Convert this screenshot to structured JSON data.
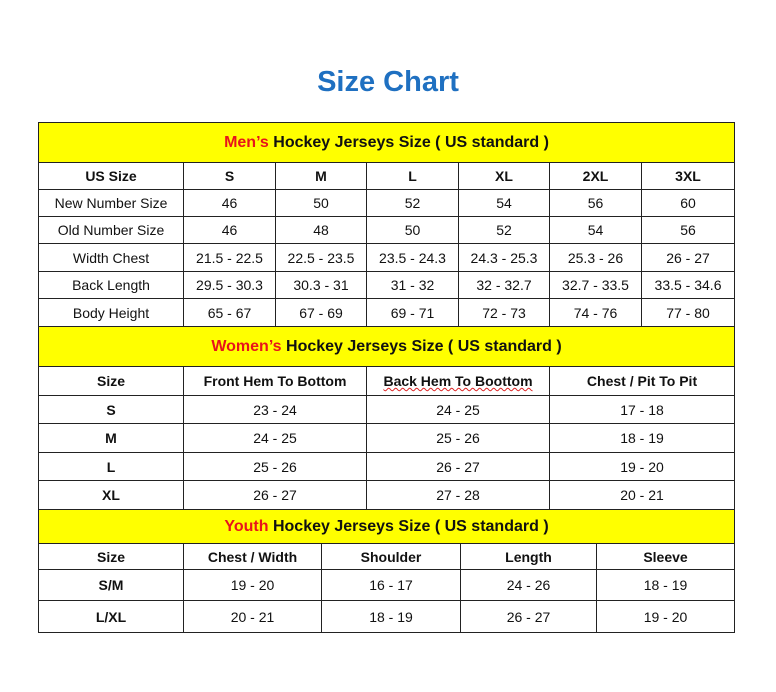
{
  "title": "Size Chart",
  "colors": {
    "title": "#1f70c1",
    "header_bg": "#ffff00",
    "accent_red": "#e8141b"
  },
  "mens": {
    "header_highlight": "Men’s",
    "header_rest": " Hockey Jerseys Size ( US standard )",
    "columns": [
      "US Size",
      "S",
      "M",
      "L",
      "XL",
      "2XL",
      "3XL"
    ],
    "rows": [
      [
        "New Number Size",
        "46",
        "50",
        "52",
        "54",
        "56",
        "60"
      ],
      [
        "Old Number Size",
        "46",
        "48",
        "50",
        "52",
        "54",
        "56"
      ],
      [
        "Width Chest",
        "21.5 - 22.5",
        "22.5 - 23.5",
        "23.5 - 24.3",
        "24.3 - 25.3",
        "25.3 - 26",
        "26 - 27"
      ],
      [
        "Back Length",
        "29.5 - 30.3",
        "30.3 - 31",
        "31 - 32",
        "32 - 32.7",
        "32.7 - 33.5",
        "33.5 - 34.6"
      ],
      [
        "Body Height",
        "65 - 67",
        "67 - 69",
        "69 - 71",
        "72 - 73",
        "74 - 76",
        "77 - 80"
      ]
    ]
  },
  "womens": {
    "header_highlight": "Women’s",
    "header_rest": " Hockey Jerseys Size ( US standard )",
    "columns": [
      "Size",
      "Front Hem To Bottom",
      "Back Hem To Boottom",
      "Chest / Pit To Pit"
    ],
    "rows": [
      [
        "S",
        "23 - 24",
        "24 - 25",
        "17 - 18"
      ],
      [
        "M",
        "24 - 25",
        "25 - 26",
        "18 - 19"
      ],
      [
        "L",
        "25 - 26",
        "26 - 27",
        "19 - 20"
      ],
      [
        "XL",
        "26 - 27",
        "27 - 28",
        "20 - 21"
      ]
    ]
  },
  "youth": {
    "header_highlight": "Youth",
    "header_rest": " Hockey Jerseys Size ( US standard )",
    "columns": [
      "Size",
      "Chest / Width",
      "Shoulder",
      "Length",
      "Sleeve"
    ],
    "rows": [
      [
        "S/M",
        "19 - 20",
        "16 - 17",
        "24 - 26",
        "18 - 19"
      ],
      [
        "L/XL",
        "20 - 21",
        "18 - 19",
        "26 - 27",
        "19 - 20"
      ]
    ]
  }
}
